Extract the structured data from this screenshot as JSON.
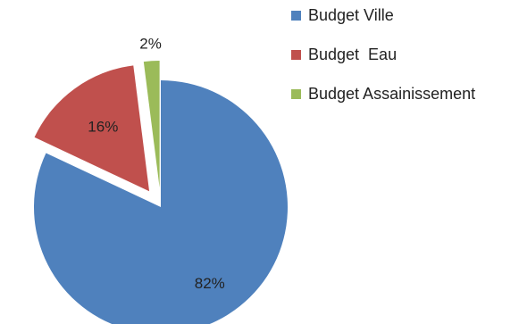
{
  "chart_data": {
    "type": "pie",
    "exploded": true,
    "legend_position": "top-right",
    "slices": [
      {
        "label": "Budget Ville",
        "value": 82,
        "display": "82%",
        "color": "#4F81BD"
      },
      {
        "label": "Budget  Eau",
        "value": 16,
        "display": "16%",
        "color": "#C0504D"
      },
      {
        "label": "Budget Assainissement",
        "value": 2,
        "display": "2%",
        "color": "#9BBB59"
      }
    ]
  }
}
